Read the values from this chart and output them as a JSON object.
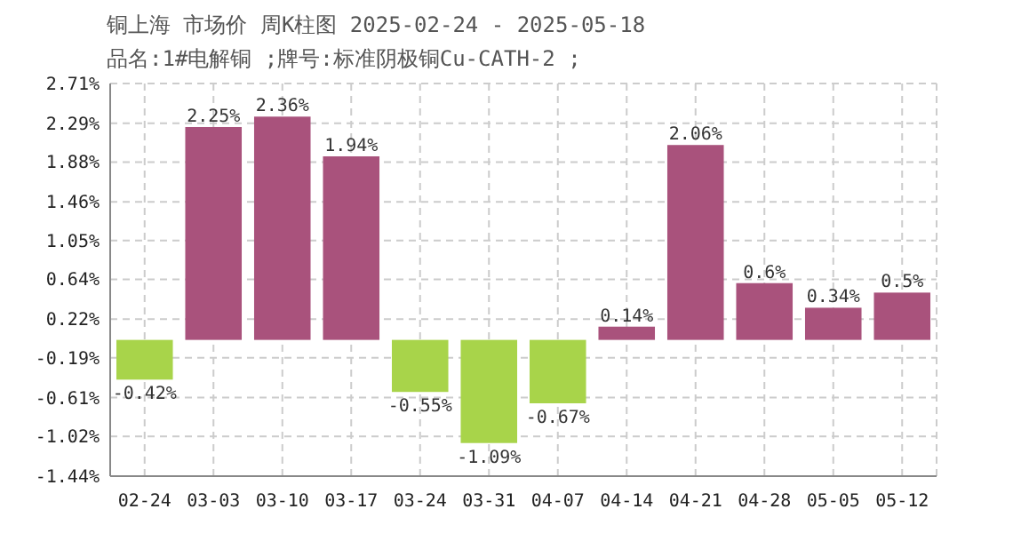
{
  "chart_data": {
    "type": "bar",
    "title": "铜上海 市场价 周K柱图 2025-02-24 - 2025-05-18",
    "subtitle": "品名:1#电解铜 ;牌号:标准阴极铜Cu-CATH-2 ;",
    "categories": [
      "02-24",
      "03-03",
      "03-10",
      "03-17",
      "03-24",
      "03-31",
      "04-07",
      "04-14",
      "04-21",
      "04-28",
      "05-05",
      "05-12"
    ],
    "values": [
      -0.42,
      2.25,
      2.36,
      1.94,
      -0.55,
      -1.09,
      -0.67,
      0.14,
      2.06,
      0.6,
      0.34,
      0.5
    ],
    "colors": [
      "#a8d44a",
      "#a9527c",
      "#a9527c",
      "#a9527c",
      "#a8d44a",
      "#a8d44a",
      "#a8d44a",
      "#a9527c",
      "#a9527c",
      "#a9527c",
      "#a9527c",
      "#a9527c"
    ],
    "value_labels": [
      "-0.42%",
      "2.25%",
      "2.36%",
      "1.94%",
      "-0.55%",
      "-1.09%",
      "-0.67%",
      "0.14%",
      "2.06%",
      "0.6%",
      "0.34%",
      "0.5%"
    ],
    "ylim": [
      -1.44,
      2.71
    ],
    "yticks": [
      {
        "value": 2.71,
        "label": "2.71%"
      },
      {
        "value": 2.29,
        "label": "2.29%"
      },
      {
        "value": 1.88,
        "label": "1.88%"
      },
      {
        "value": 1.46,
        "label": "1.46%"
      },
      {
        "value": 1.05,
        "label": "1.05%"
      },
      {
        "value": 0.64,
        "label": "0.64%"
      },
      {
        "value": 0.22,
        "label": "0.22%"
      },
      {
        "value": -0.19,
        "label": "-0.19%"
      },
      {
        "value": -0.61,
        "label": "-0.61%"
      },
      {
        "value": -1.02,
        "label": "-1.02%"
      },
      {
        "value": -1.44,
        "label": "-1.44%"
      }
    ],
    "grid": true
  }
}
